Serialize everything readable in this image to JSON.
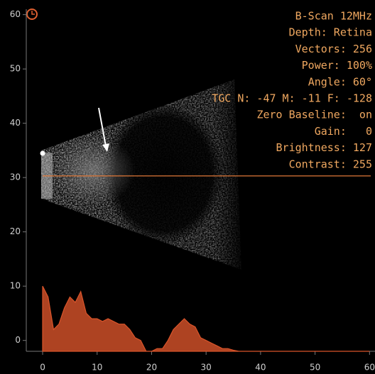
{
  "chart_data": {
    "type": "area",
    "info_lines": [
      "B-Scan 12MHz",
      "Depth: Retina",
      "Vectors: 256",
      "Power: 100%",
      "Angle: 60°",
      "TGC N: -47 M: -11 F: -128",
      "Zero Baseline:  on",
      "Gain:   0",
      "Brightness: 127",
      "Contrast: 255"
    ],
    "x": [
      0,
      1,
      2,
      3,
      4,
      5,
      6,
      7,
      8,
      9,
      10,
      11,
      12,
      13,
      14,
      15,
      16,
      17,
      18,
      19,
      20,
      21,
      22,
      23,
      24,
      25,
      26,
      27,
      28,
      29,
      30,
      31,
      32,
      33,
      34,
      35,
      36,
      37,
      38,
      39,
      40,
      41,
      42,
      43,
      44,
      45,
      46,
      47,
      48,
      49,
      50,
      51,
      52,
      53,
      54,
      55,
      56,
      57,
      58,
      59,
      60
    ],
    "values": [
      10,
      8,
      2,
      3,
      6,
      8,
      7,
      9,
      5,
      4,
      4,
      3.5,
      4,
      3.5,
      3,
      3,
      2,
      0.5,
      0,
      -2,
      -2,
      -1.5,
      -1.5,
      0,
      2,
      3,
      4,
      3,
      2.5,
      0.5,
      0,
      -0.5,
      -1,
      -1.5,
      -1.5,
      -1.8,
      -2,
      -2,
      -2,
      -2,
      -2,
      -2,
      -2,
      -2,
      -2,
      -2,
      -2,
      -2,
      -2,
      -2,
      -2,
      -2,
      -2,
      -2,
      -2,
      -2,
      -2,
      -2,
      -2,
      -2,
      -2
    ],
    "color": "#d9542a",
    "cursor_y": 30.3,
    "xlim": [
      -3,
      61
    ],
    "ylim": [
      -2,
      61
    ],
    "xticks": [
      0,
      10,
      20,
      30,
      40,
      50,
      60
    ],
    "yticks": [
      0,
      10,
      20,
      30,
      40,
      50,
      60
    ]
  }
}
